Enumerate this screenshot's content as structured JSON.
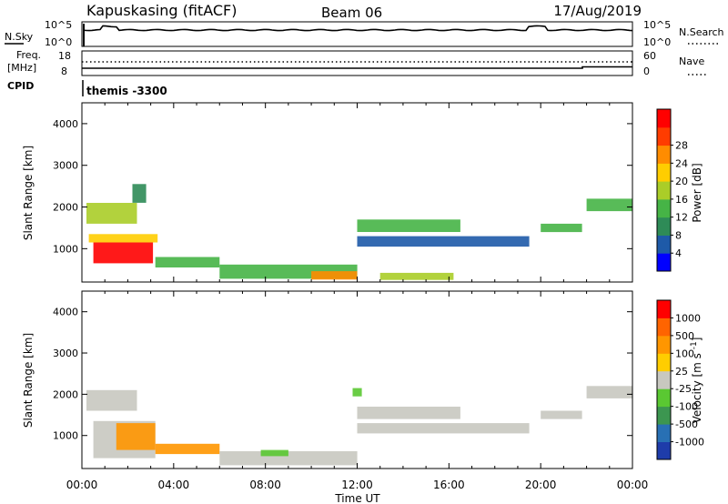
{
  "header": {
    "station": "Kapuskasing (fitACF)",
    "beam": "Beam 06",
    "date": "17/Aug/2019"
  },
  "noise_panel": {
    "left_label": "N.Sky",
    "right_label": "N.Search",
    "left_ticks": [
      "10^5",
      "10^0"
    ],
    "right_ticks": [
      "10^5",
      "10^0"
    ]
  },
  "freq_panel": {
    "left_label_1": "Freq.",
    "left_label_2": "[MHz]",
    "left_ticks": [
      "18",
      "8"
    ],
    "right_label": "Nave",
    "right_ticks": [
      "60",
      "0"
    ]
  },
  "cpid_panel": {
    "left_label": "CPID",
    "value": "themis -3300"
  },
  "colors": {
    "power": [
      "#0000ff",
      "#1e5aa8",
      "#2e8b57",
      "#46b446",
      "#aacd28",
      "#ffcd00",
      "#ff8c00",
      "#ff3c00",
      "#ff0000"
    ],
    "velocity": [
      "#1e3caa",
      "#2870b4",
      "#3c9650",
      "#5ac832",
      "#c8c8c0",
      "#ffcd00",
      "#ff9600",
      "#ff6400",
      "#ff0000"
    ]
  },
  "chart_data": [
    {
      "type": "heatmap",
      "name": "power",
      "ylabel": "Slant Range [km]",
      "yticks": [
        "1000",
        "2000",
        "3000",
        "4000"
      ],
      "ylim": [
        200,
        4500
      ],
      "xlim_hours": [
        0,
        24
      ],
      "colorbar_label": "Power [dB]",
      "colorbar_ticks": [
        "4",
        "8",
        "12",
        "16",
        "20",
        "24",
        "28"
      ],
      "regions": [
        {
          "t0": 0.5,
          "t1": 3.1,
          "r0": 650,
          "r1": 1150,
          "level": 8
        },
        {
          "t0": 0.3,
          "t1": 3.3,
          "r0": 1150,
          "r1": 1350,
          "level": 5
        },
        {
          "t0": 0.2,
          "t1": 2.4,
          "r0": 1600,
          "r1": 2100,
          "level": 4
        },
        {
          "t0": 2.2,
          "t1": 2.8,
          "r0": 2100,
          "r1": 2550,
          "level": 2
        },
        {
          "t0": 3.2,
          "t1": 6.0,
          "r0": 550,
          "r1": 800,
          "level": 3
        },
        {
          "t0": 6.0,
          "t1": 12.0,
          "r0": 280,
          "r1": 620,
          "level": 3
        },
        {
          "t0": 10.0,
          "t1": 12.0,
          "r0": 260,
          "r1": 460,
          "level": 6
        },
        {
          "t0": 12.0,
          "t1": 16.5,
          "r0": 1400,
          "r1": 1700,
          "level": 3
        },
        {
          "t0": 12.0,
          "t1": 19.5,
          "r0": 1050,
          "r1": 1300,
          "level": 1
        },
        {
          "t0": 13.0,
          "t1": 16.2,
          "r0": 250,
          "r1": 420,
          "level": 4
        },
        {
          "t0": 20.0,
          "t1": 21.8,
          "r0": 1400,
          "r1": 1600,
          "level": 3
        },
        {
          "t0": 22.0,
          "t1": 24.0,
          "r0": 1900,
          "r1": 2200,
          "level": 3
        }
      ]
    },
    {
      "type": "heatmap",
      "name": "velocity",
      "ylabel": "Slant Range [km]",
      "yticks": [
        "1000",
        "2000",
        "3000",
        "4000"
      ],
      "ylim": [
        200,
        4500
      ],
      "xlabel": "Time UT",
      "xticks": [
        "00:00",
        "04:00",
        "08:00",
        "12:00",
        "16:00",
        "20:00",
        "00:00"
      ],
      "xlim_hours": [
        0,
        24
      ],
      "colorbar_label": "Velocity [m s^-1]",
      "colorbar_ticks": [
        "1000",
        "500",
        "100",
        "25",
        "-25",
        "-100",
        "-500",
        "-1000"
      ],
      "regions": [
        {
          "t0": 0.5,
          "t1": 3.2,
          "r0": 450,
          "r1": 1350,
          "level": 4
        },
        {
          "t0": 1.5,
          "t1": 3.2,
          "r0": 650,
          "r1": 1300,
          "level": 6
        },
        {
          "t0": 0.2,
          "t1": 2.4,
          "r0": 1600,
          "r1": 2100,
          "level": 4
        },
        {
          "t0": 3.2,
          "t1": 6.0,
          "r0": 550,
          "r1": 800,
          "level": 6
        },
        {
          "t0": 6.0,
          "t1": 12.0,
          "r0": 280,
          "r1": 620,
          "level": 4
        },
        {
          "t0": 7.8,
          "t1": 9.0,
          "r0": 500,
          "r1": 650,
          "level": 3
        },
        {
          "t0": 12.0,
          "t1": 16.5,
          "r0": 1400,
          "r1": 1700,
          "level": 4
        },
        {
          "t0": 12.0,
          "t1": 19.5,
          "r0": 1050,
          "r1": 1300,
          "level": 4
        },
        {
          "t0": 11.8,
          "t1": 12.2,
          "r0": 1950,
          "r1": 2150,
          "level": 3
        },
        {
          "t0": 20.0,
          "t1": 21.8,
          "r0": 1400,
          "r1": 1600,
          "level": 4
        },
        {
          "t0": 22.0,
          "t1": 24.0,
          "r0": 1900,
          "r1": 2200,
          "level": 4
        }
      ]
    }
  ]
}
